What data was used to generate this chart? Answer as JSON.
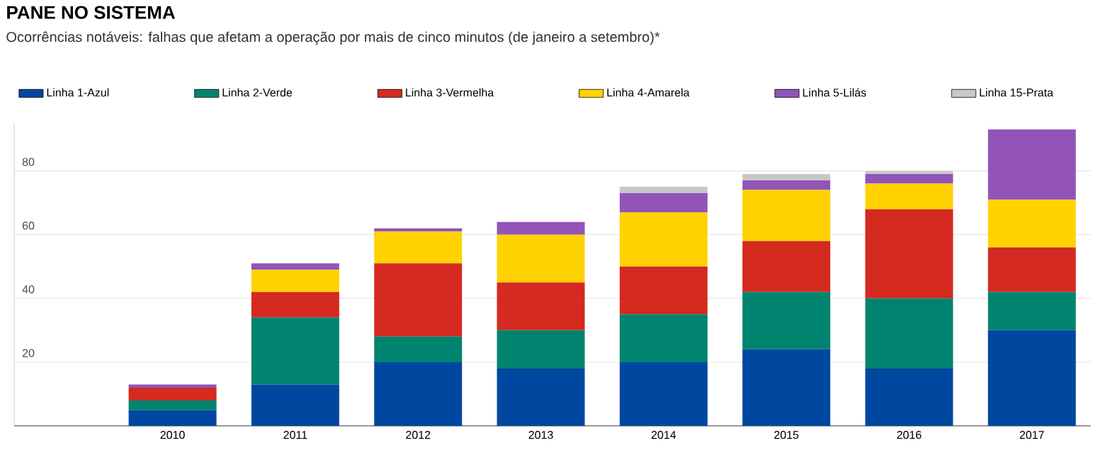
{
  "chart_data": {
    "type": "bar",
    "stacked": true,
    "title": "PANE NO SISTEMA",
    "subtitle": "Ocorrências notáveis: falhas que afetam a operação por mais de cinco minutos (de janeiro a setembro)*",
    "categories": [
      "2010",
      "2011",
      "2012",
      "2013",
      "2014",
      "2015",
      "2016",
      "2017"
    ],
    "series": [
      {
        "name": "Linha 1-Azul",
        "color": "#0047a0",
        "values": [
          5,
          13,
          20,
          18,
          20,
          24,
          18,
          30
        ]
      },
      {
        "name": "Linha 2-Verde",
        "color": "#00846f",
        "values": [
          3,
          21,
          8,
          12,
          15,
          18,
          22,
          12
        ]
      },
      {
        "name": "Linha 3-Vermelha",
        "color": "#d42a20",
        "values": [
          4,
          8,
          23,
          15,
          15,
          16,
          28,
          14
        ]
      },
      {
        "name": "Linha 4-Amarela",
        "color": "#ffd200",
        "values": [
          0,
          7,
          10,
          15,
          17,
          16,
          8,
          15
        ]
      },
      {
        "name": "Linha 5-Lilás",
        "color": "#9254b8",
        "values": [
          1,
          2,
          1,
          4,
          6,
          3,
          3,
          22
        ]
      },
      {
        "name": "Linha 15-Prata",
        "color": "#c8c8c8",
        "values": [
          0,
          0,
          0,
          0,
          2,
          2,
          1,
          0
        ]
      }
    ],
    "ylim": [
      0,
      95
    ],
    "yticks": [
      20,
      40,
      60,
      80
    ],
    "grid": "y",
    "legend": "top"
  }
}
